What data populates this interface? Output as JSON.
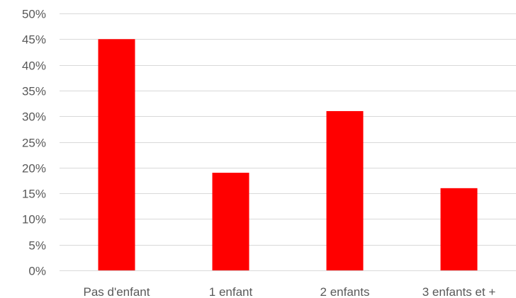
{
  "chart_data": {
    "type": "bar",
    "categories": [
      "Pas d'enfant",
      "1 enfant",
      "2 enfants",
      "3 enfants et +"
    ],
    "values": [
      45,
      19,
      31,
      16
    ],
    "ylim": [
      0,
      50
    ],
    "yticks": [
      0,
      5,
      10,
      15,
      20,
      25,
      30,
      35,
      40,
      45,
      50
    ],
    "ytick_labels": [
      "0%",
      "5%",
      "10%",
      "15%",
      "20%",
      "25%",
      "30%",
      "35%",
      "40%",
      "45%",
      "50%"
    ],
    "grid": true,
    "legend": "none",
    "colors": {
      "bar": "#ff0000",
      "grid": "#d9d9d9",
      "text": "#595959"
    }
  }
}
